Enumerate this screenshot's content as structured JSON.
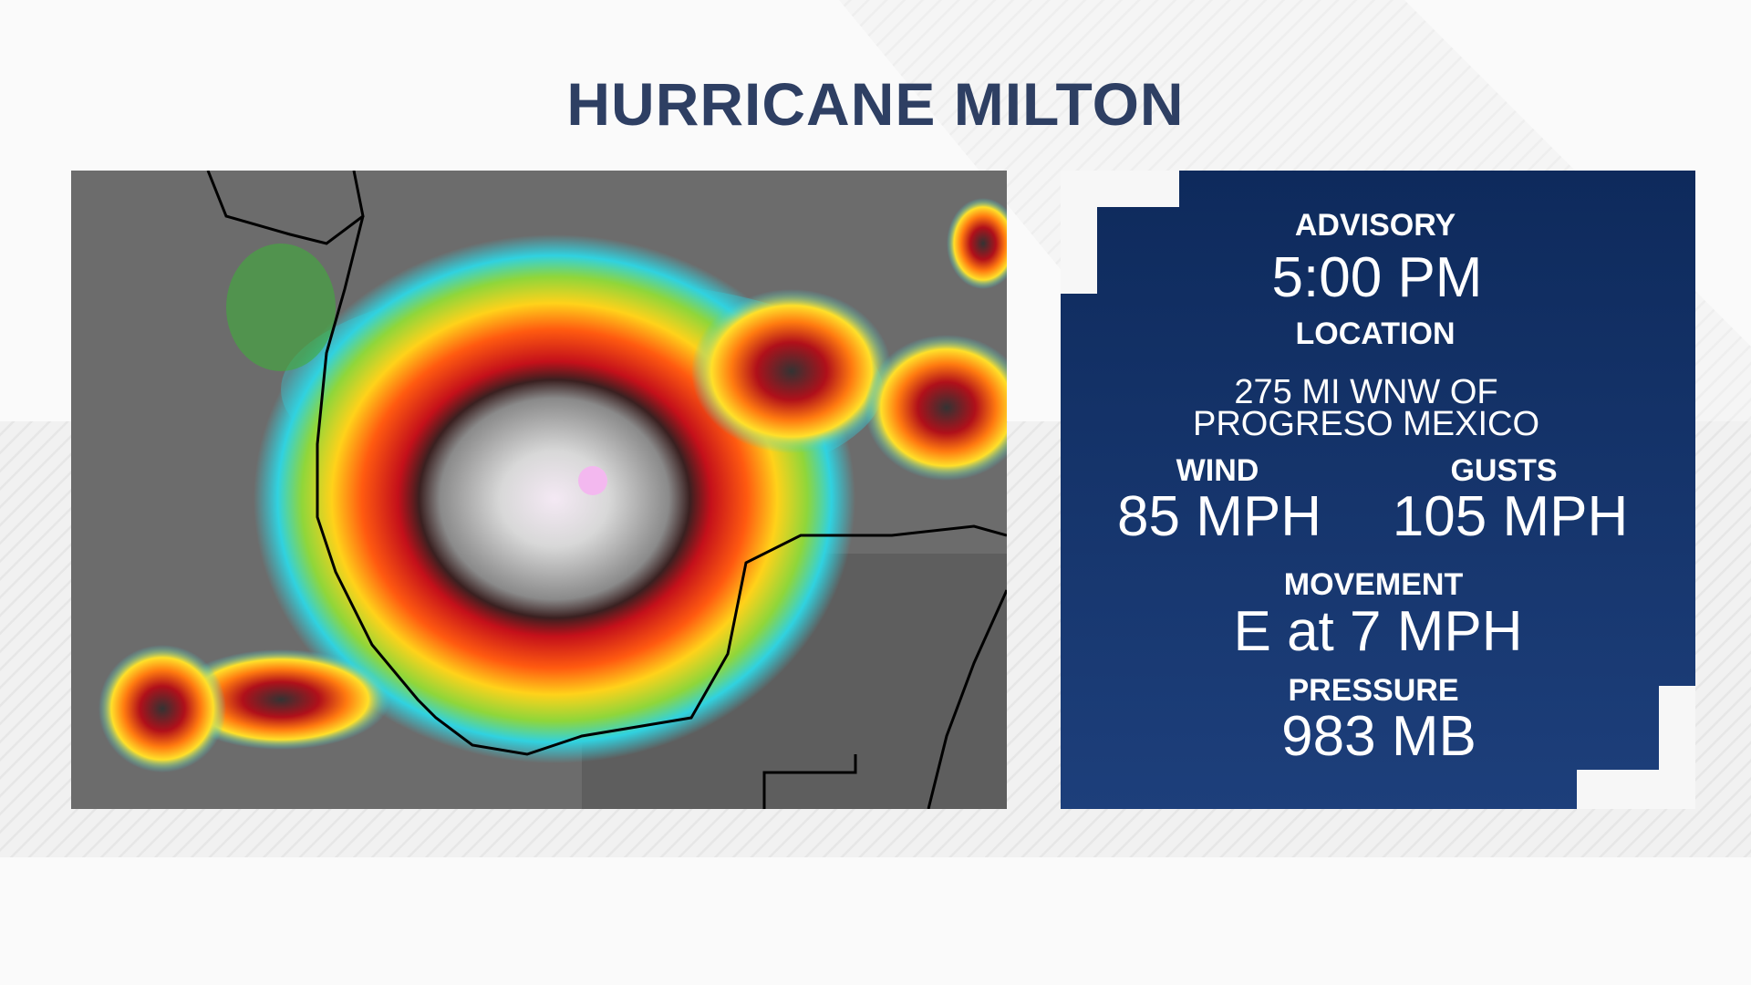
{
  "header": {
    "title": "HURRICANE MILTON"
  },
  "panel": {
    "advisory": {
      "label": "ADVISORY",
      "value": "5:00 PM"
    },
    "location": {
      "label": "LOCATION",
      "lines": [
        "275 MI WNW OF",
        "PROGRESO MEXICO"
      ]
    },
    "wind": {
      "label": "WIND",
      "value": "85 MPH"
    },
    "gusts": {
      "label": "GUSTS",
      "value": "105 MPH"
    },
    "movement": {
      "label": "MOVEMENT",
      "value": "E at 7 MPH"
    },
    "pressure": {
      "label": "PRESSURE",
      "value": "983 MB"
    }
  }
}
